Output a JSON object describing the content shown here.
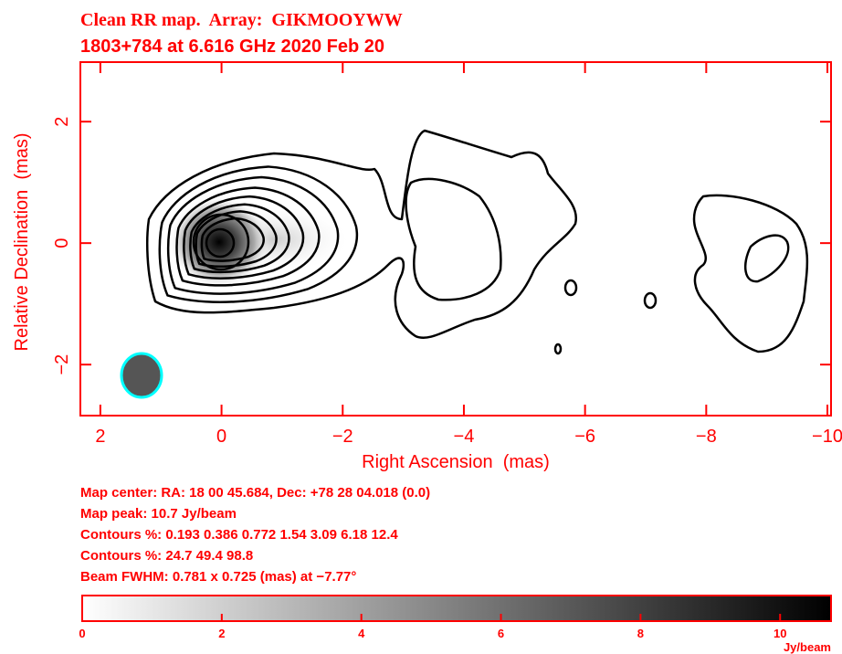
{
  "chart_data": {
    "type": "map",
    "title": "Clean RR map.  Array:  GIKMOOYWW",
    "subtitle": "1803+784 at 6.616 GHz 2020 Feb 20",
    "xlabel": "Right Ascension  (mas)",
    "ylabel": "Relative Declination  (mas)",
    "xlim": [
      2.33,
      -10.06
    ],
    "ylim": [
      -2.84,
      2.98
    ],
    "xticks": [
      2,
      0,
      {
        "value": -2,
        "label": "−2"
      },
      {
        "value": -4,
        "label": "−4"
      },
      {
        "value": -6,
        "label": "−6"
      },
      {
        "value": -8,
        "label": "−8"
      },
      {
        "value": -10,
        "label": "−10"
      }
    ],
    "yticks": [
      {
        "value": -2,
        "label": "−2"
      },
      0,
      2
    ],
    "notes": [
      "Map center:  RA: 18 00 45.684,  Dec: +78 28 04.018 (0.0)",
      "Map peak: 10.7 Jy/beam",
      "Contours %: 0.193 0.386 0.772 1.54 3.09 6.18 12.4",
      "Contours %: 24.7 49.4 98.8",
      "Beam FWHM: 0.781 x 0.725 (mas) at −7.77°"
    ],
    "colorbar": {
      "lim": [
        0,
        10.73
      ],
      "ticks": [
        0,
        2,
        4,
        6,
        8,
        10
      ],
      "label": "Jy/beam"
    }
  }
}
